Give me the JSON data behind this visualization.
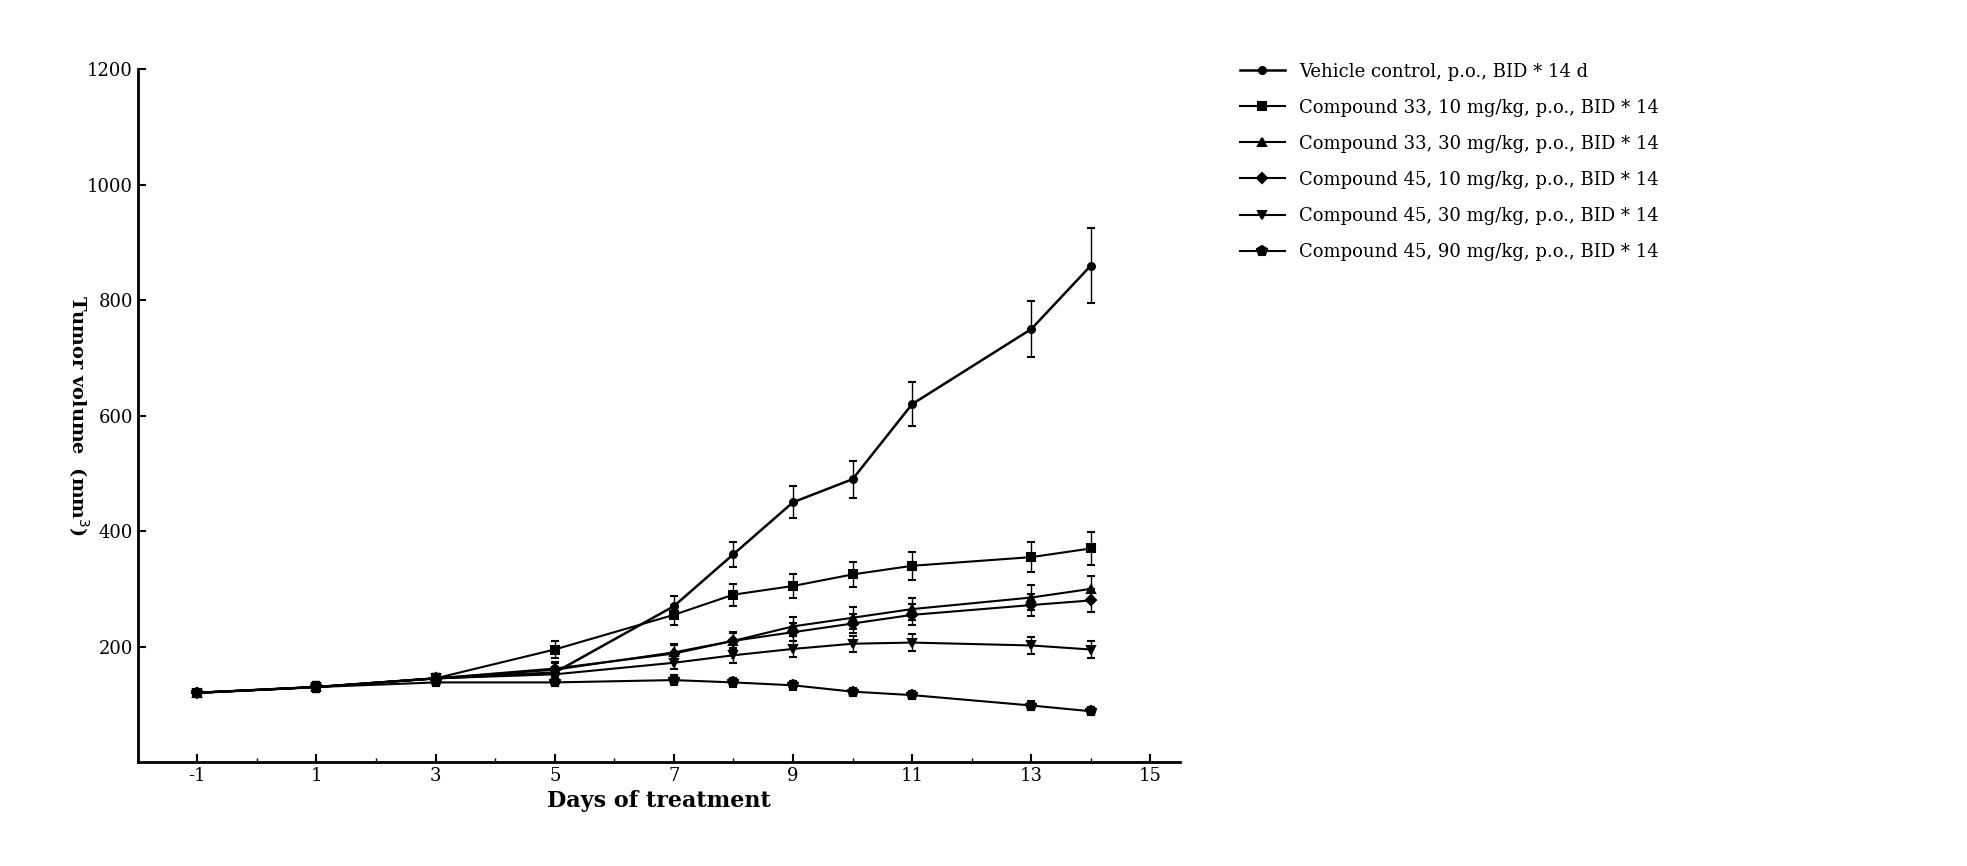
{
  "x": [
    -1,
    1,
    3,
    5,
    7,
    8,
    9,
    10,
    11,
    13,
    14
  ],
  "series": [
    {
      "label": "Vehicle control, p.o., BID * 14 d",
      "y": [
        120,
        130,
        145,
        155,
        270,
        360,
        450,
        490,
        620,
        750,
        860
      ],
      "yerr": [
        5,
        8,
        8,
        10,
        18,
        22,
        28,
        32,
        38,
        48,
        65
      ],
      "color": "#000000",
      "marker": "o",
      "linestyle": "-",
      "linewidth": 1.8,
      "markersize": 5
    },
    {
      "label": "Compound 33, 10 mg/kg, p.o., BID * 14",
      "y": [
        120,
        130,
        145,
        195,
        255,
        290,
        305,
        325,
        340,
        355,
        370
      ],
      "yerr": [
        5,
        8,
        8,
        14,
        17,
        19,
        20,
        22,
        24,
        26,
        28
      ],
      "color": "#000000",
      "marker": "s",
      "linestyle": "-",
      "linewidth": 1.5,
      "markersize": 6
    },
    {
      "label": "Compound 33, 30 mg/kg, p.o., BID * 14",
      "y": [
        120,
        130,
        145,
        160,
        190,
        210,
        235,
        250,
        265,
        285,
        300
      ],
      "yerr": [
        5,
        8,
        8,
        11,
        14,
        16,
        17,
        19,
        19,
        21,
        23
      ],
      "color": "#000000",
      "marker": "^",
      "linestyle": "-",
      "linewidth": 1.5,
      "markersize": 6
    },
    {
      "label": "Compound 45, 10 mg/kg, p.o., BID * 14",
      "y": [
        120,
        130,
        145,
        162,
        188,
        210,
        225,
        240,
        255,
        272,
        280
      ],
      "yerr": [
        5,
        8,
        8,
        11,
        14,
        14,
        16,
        17,
        18,
        19,
        20
      ],
      "color": "#000000",
      "marker": "D",
      "linestyle": "-",
      "linewidth": 1.5,
      "markersize": 5
    },
    {
      "label": "Compound 45, 30 mg/kg, p.o., BID * 14",
      "y": [
        120,
        130,
        145,
        152,
        172,
        185,
        196,
        205,
        207,
        202,
        195
      ],
      "yerr": [
        5,
        7,
        8,
        9,
        11,
        13,
        14,
        14,
        15,
        14,
        14
      ],
      "color": "#000000",
      "marker": "v",
      "linestyle": "-",
      "linewidth": 1.5,
      "markersize": 6
    },
    {
      "label": "Compound 45, 90 mg/kg, p.o., BID * 14",
      "y": [
        120,
        130,
        138,
        138,
        142,
        138,
        133,
        122,
        116,
        98,
        88
      ],
      "yerr": [
        5,
        6,
        7,
        7,
        8,
        8,
        8,
        7,
        7,
        7,
        7
      ],
      "color": "#000000",
      "marker": "p",
      "linestyle": "-",
      "linewidth": 1.5,
      "markersize": 7
    }
  ],
  "xlabel": "Days of treatment",
  "ylabel": "Tumor volume  (mm",
  "ylabel_super": "3",
  "xtick_major": [
    -1,
    1,
    3,
    5,
    7,
    9,
    11,
    13,
    15
  ],
  "xtick_minor_start": -1,
  "xtick_minor_end": 15,
  "yticks": [
    200,
    400,
    600,
    800,
    1000,
    1200
  ],
  "ylim": [
    0,
    1200
  ],
  "xlim": [
    -2,
    15.5
  ],
  "background_color": "#ffffff",
  "font_family": "serif"
}
